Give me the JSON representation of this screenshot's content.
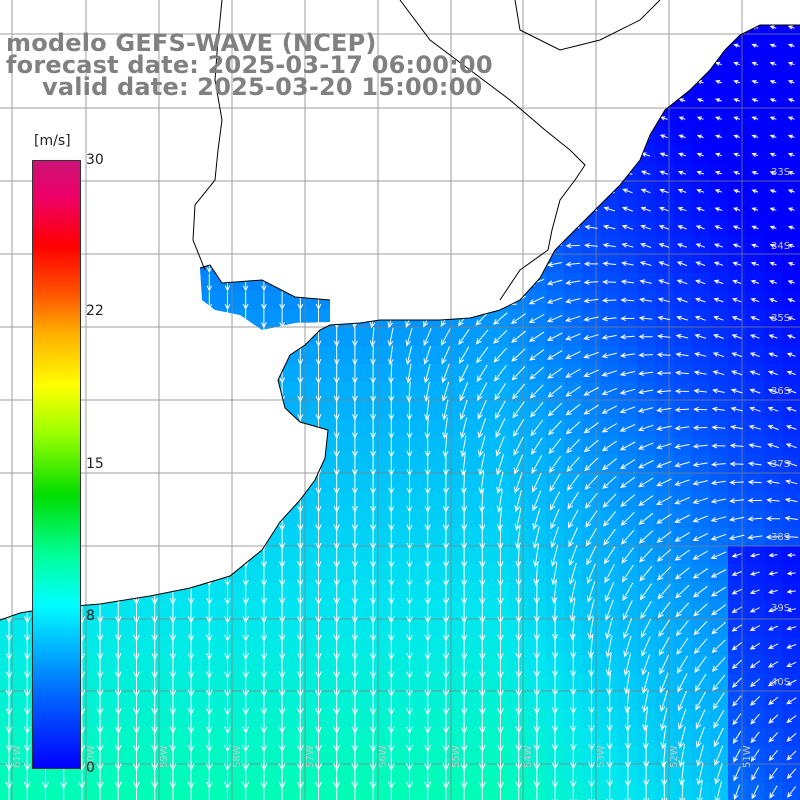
{
  "title": {
    "line1": "modelo GEFS-WAVE (NCEP)",
    "line2": "forecast date: 2025-03-17 06:00:00",
    "line3": "valid date: 2025-03-20 15:00:00"
  },
  "colorbar": {
    "unit": "[m/s]",
    "ticks": [
      "30",
      "22",
      "15",
      "8",
      "0"
    ],
    "colors": [
      "#0000ff",
      "#0066ff",
      "#00ccff",
      "#00ffff",
      "#00ff99",
      "#00dd00",
      "#99ff00",
      "#ffff00",
      "#ffaa00",
      "#ff5500",
      "#ff0000",
      "#cc1177"
    ]
  },
  "lat_labels": [
    "33S",
    "34S",
    "35S",
    "36S",
    "37S",
    "38S",
    "39S",
    "40S"
  ],
  "lon_labels": [
    "61W",
    "60W",
    "59W",
    "58W",
    "57W",
    "56W",
    "55W",
    "54W",
    "53W",
    "52W",
    "51W"
  ],
  "field": "wind speed (m/s) with direction arrows",
  "colors": {
    "land": "#ffffff",
    "coast": "#000000",
    "grid": "#808080",
    "arrow": "#ffffff",
    "title": "#808080"
  }
}
